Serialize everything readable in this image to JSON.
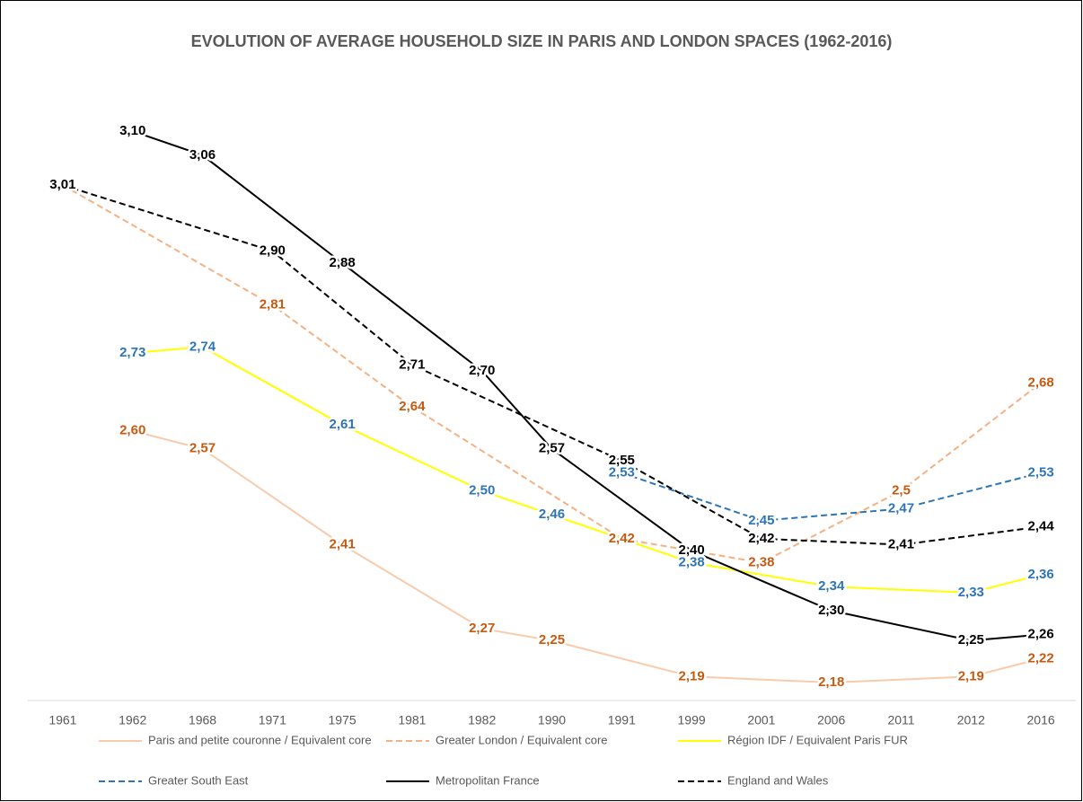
{
  "chart_data": {
    "type": "line",
    "title": "EVOLUTION OF AVERAGE HOUSEHOLD SIZE IN PARIS AND LONDON SPACES (1962-2016)",
    "categories": [
      "1961",
      "1962",
      "1968",
      "1971",
      "1975",
      "1981",
      "1982",
      "1990",
      "1991",
      "1999",
      "2001",
      "2006",
      "2011",
      "2012",
      "2016"
    ],
    "ylim": [
      2.15,
      3.25
    ],
    "series": [
      {
        "name": "Paris and petite couronne / Equivalent core",
        "color": "#f8cbad",
        "label_color": "#c55a11",
        "dash": "solid",
        "x": [
          "1962",
          "1968",
          "1975",
          "1982",
          "1990",
          "1999",
          "2006",
          "2012",
          "2016"
        ],
        "values": [
          2.6,
          2.57,
          2.41,
          2.27,
          2.25,
          2.19,
          2.18,
          2.19,
          2.22
        ],
        "value_labels": [
          "2,60",
          "2,57",
          "2,41",
          "2,27",
          "2,25",
          "2,19",
          "2,18",
          "2,19",
          "2,22"
        ]
      },
      {
        "name": "Greater London / Equivalent core",
        "color": "#f4b183",
        "label_color": "#c55a11",
        "dash": "dashed",
        "x": [
          "1961",
          "1971",
          "1981",
          "1991",
          "2001",
          "2011",
          "2016"
        ],
        "values": [
          3.01,
          2.81,
          2.64,
          2.42,
          2.38,
          2.5,
          2.68
        ],
        "value_labels": [
          null,
          "2,81",
          "2,64",
          "2,42",
          "2,38",
          "2,5",
          "2,68"
        ]
      },
      {
        "name": "Région IDF / Equivalent Paris FUR",
        "color": "#ffff00",
        "label_color": "#2e75b6",
        "dash": "solid",
        "x": [
          "1962",
          "1968",
          "1975",
          "1982",
          "1990",
          "1999",
          "2006",
          "2012",
          "2016"
        ],
        "values": [
          2.73,
          2.74,
          2.61,
          2.5,
          2.46,
          2.38,
          2.34,
          2.33,
          2.36
        ],
        "value_labels": [
          "2,73",
          "2,74",
          "2,61",
          "2,50",
          "2,46",
          "2,38",
          "2,34",
          "2,33",
          "2,36"
        ]
      },
      {
        "name": "Greater South East",
        "color": "#2e75b6",
        "label_color": "#2e75b6",
        "dash": "dashed",
        "x": [
          "1991",
          "2001",
          "2011",
          "2016"
        ],
        "values": [
          2.53,
          2.45,
          2.47,
          2.53
        ],
        "value_labels": [
          "2,53",
          "2,45",
          "2,47",
          "2,53"
        ]
      },
      {
        "name": "Metropolitan France",
        "color": "#000000",
        "label_color": "#000000",
        "dash": "solid",
        "x": [
          "1962",
          "1968",
          "1975",
          "1982",
          "1990",
          "1999",
          "2006",
          "2012",
          "2016"
        ],
        "values": [
          3.1,
          3.06,
          2.88,
          2.7,
          2.57,
          2.4,
          2.3,
          2.25,
          2.26
        ],
        "value_labels": [
          "3,10",
          "3,06",
          "2,88",
          "2,70",
          "2,57",
          "2,40",
          "2,30",
          "2,25",
          "2,26"
        ]
      },
      {
        "name": "England and Wales",
        "color": "#000000",
        "label_color": "#000000",
        "dash": "dashed",
        "x": [
          "1961",
          "1971",
          "1981",
          "1991",
          "2001",
          "2011",
          "2016"
        ],
        "values": [
          3.01,
          2.9,
          2.71,
          2.55,
          2.42,
          2.41,
          2.44
        ],
        "value_labels": [
          "3,01",
          "2,90",
          "2,71",
          "2,55",
          "2,42",
          "2,41",
          "2,44"
        ]
      }
    ]
  }
}
